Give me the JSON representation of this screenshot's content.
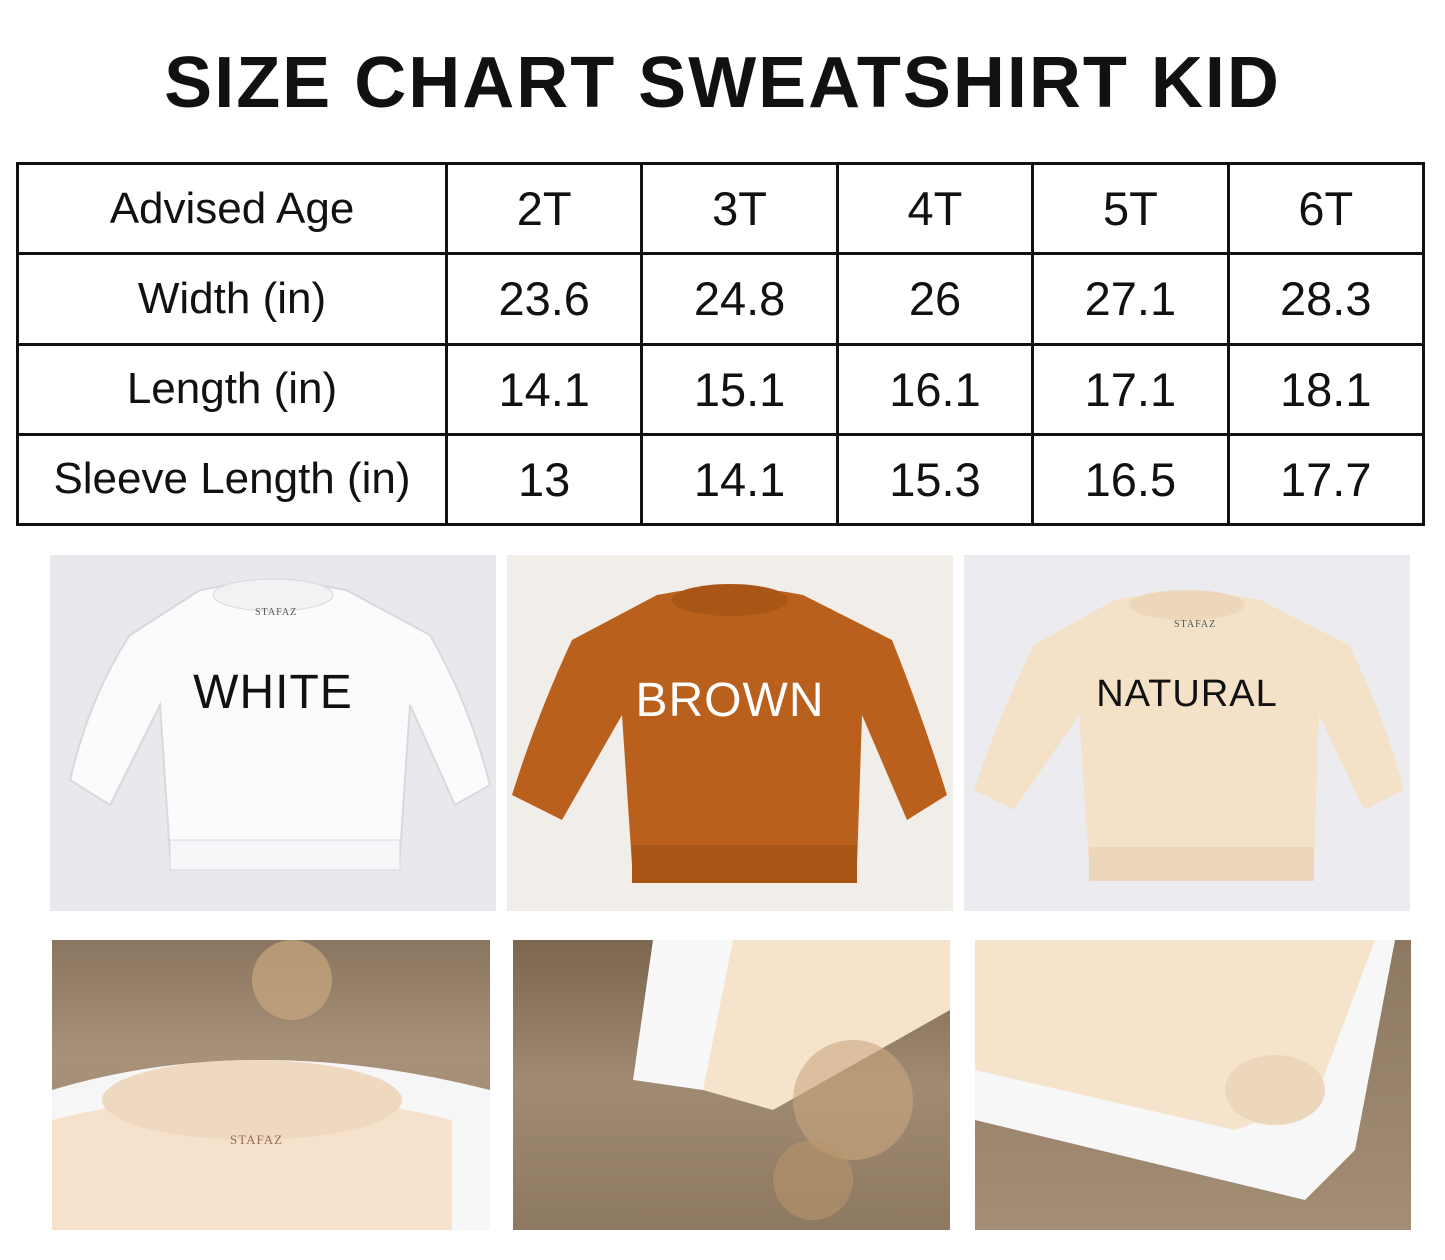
{
  "title": "SIZE CHART SWEATSHIRT KID",
  "size_table": {
    "header": {
      "label": "Advised Age",
      "sizes": [
        "2T",
        "3T",
        "4T",
        "5T",
        "6T"
      ]
    },
    "rows": [
      {
        "label": "Width (in)",
        "values": [
          "23.6",
          "24.8",
          "26",
          "27.1",
          "28.3"
        ]
      },
      {
        "label": "Length (in)",
        "values": [
          "14.1",
          "15.1",
          "16.1",
          "17.1",
          "18.1"
        ]
      },
      {
        "label": "Sleeve Length (in)",
        "values": [
          "13",
          "14.1",
          "15.3",
          "16.5",
          "17.7"
        ]
      }
    ]
  },
  "colors": [
    {
      "name": "WHITE",
      "fabric": "#fbfbfc",
      "background": "#e9e9ee",
      "text": "#111111"
    },
    {
      "name": "BROWN",
      "fabric": "#b9601c",
      "background": "#f1ede8",
      "text": "#ffffff"
    },
    {
      "name": "NATURAL",
      "fabric": "#f4e2c8",
      "background": "#ececf0",
      "text": "#111111"
    }
  ],
  "brand": "STAFAZ"
}
